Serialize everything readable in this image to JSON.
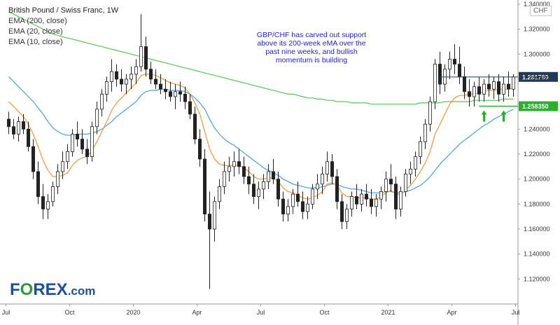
{
  "legend": {
    "title": "British Pound / Swiss Franc, 1W",
    "ema200": "EMA (200, close)",
    "ema20": "EMA (20, close)",
    "ema10": "EMA (10, close)"
  },
  "currency_badge": "CHF",
  "annotation": "GBP/CHF has carved out support above its 200-week eMA over the past nine weeks, and bullish momentum is building",
  "logo": {
    "prefix": "F",
    "o": "O",
    "suffix": "REX",
    "dotcom": ".com"
  },
  "colors": {
    "ema200": "#5cc25c",
    "ema20": "#4a9ee0",
    "ema10": "#f0963c",
    "candle_body": "#ffffff",
    "candle_stroke": "#222222",
    "badge_bg": "#1f3a5a",
    "arrow": "#2bb02b",
    "annotation_text": "#1f1fd6"
  },
  "chart_data": {
    "type": "candlestick",
    "title": "British Pound / Swiss Franc, 1W",
    "ylim": [
      1.1,
      1.34
    ],
    "y_ticks": [
      1.12,
      1.14,
      1.16,
      1.18,
      1.2,
      1.22,
      1.24,
      1.26,
      1.28,
      1.3,
      1.32,
      1.34
    ],
    "x_ticks": [
      "Jul",
      "Oct",
      "2020",
      "Apr",
      "Jul",
      "Oct",
      "2021",
      "Apr",
      "Jul"
    ],
    "price_labels": [
      {
        "value": 1.28178,
        "label": "1.281780"
      },
      {
        "value": 1.28088,
        "label": "1.280880"
      },
      {
        "value": 1.25835,
        "label": "1.258350"
      }
    ],
    "weeks": 104,
    "ohlc": [
      [
        1.248,
        1.254,
        1.236,
        1.242
      ],
      [
        1.242,
        1.248,
        1.232,
        1.236
      ],
      [
        1.236,
        1.25,
        1.23,
        1.246
      ],
      [
        1.246,
        1.252,
        1.236,
        1.24
      ],
      [
        1.24,
        1.246,
        1.222,
        1.226
      ],
      [
        1.226,
        1.232,
        1.2,
        1.206
      ],
      [
        1.206,
        1.214,
        1.18,
        1.186
      ],
      [
        1.186,
        1.196,
        1.168,
        1.176
      ],
      [
        1.176,
        1.188,
        1.168,
        1.182
      ],
      [
        1.182,
        1.198,
        1.178,
        1.194
      ],
      [
        1.194,
        1.212,
        1.188,
        1.206
      ],
      [
        1.206,
        1.222,
        1.2,
        1.214
      ],
      [
        1.214,
        1.228,
        1.208,
        1.222
      ],
      [
        1.222,
        1.24,
        1.218,
        1.236
      ],
      [
        1.236,
        1.246,
        1.226,
        1.232
      ],
      [
        1.232,
        1.24,
        1.22,
        1.224
      ],
      [
        1.224,
        1.232,
        1.212,
        1.218
      ],
      [
        1.218,
        1.246,
        1.214,
        1.242
      ],
      [
        1.242,
        1.262,
        1.236,
        1.256
      ],
      [
        1.256,
        1.272,
        1.25,
        1.268
      ],
      [
        1.268,
        1.282,
        1.262,
        1.278
      ],
      [
        1.278,
        1.296,
        1.27,
        1.286
      ],
      [
        1.286,
        1.292,
        1.274,
        1.28
      ],
      [
        1.28,
        1.288,
        1.27,
        1.276
      ],
      [
        1.276,
        1.284,
        1.268,
        1.28
      ],
      [
        1.28,
        1.29,
        1.272,
        1.284
      ],
      [
        1.284,
        1.296,
        1.276,
        1.29
      ],
      [
        1.29,
        1.332,
        1.286,
        1.306
      ],
      [
        1.306,
        1.314,
        1.282,
        1.288
      ],
      [
        1.288,
        1.294,
        1.276,
        1.28
      ],
      [
        1.28,
        1.288,
        1.272,
        1.276
      ],
      [
        1.276,
        1.284,
        1.268,
        1.272
      ],
      [
        1.272,
        1.28,
        1.264,
        1.27
      ],
      [
        1.27,
        1.278,
        1.262,
        1.266
      ],
      [
        1.266,
        1.276,
        1.256,
        1.27
      ],
      [
        1.27,
        1.278,
        1.262,
        1.268
      ],
      [
        1.268,
        1.274,
        1.256,
        1.262
      ],
      [
        1.262,
        1.268,
        1.248,
        1.252
      ],
      [
        1.252,
        1.258,
        1.228,
        1.232
      ],
      [
        1.232,
        1.24,
        1.21,
        1.216
      ],
      [
        1.216,
        1.224,
        1.166,
        1.172
      ],
      [
        1.172,
        1.19,
        1.112,
        1.16
      ],
      [
        1.16,
        1.186,
        1.15,
        1.182
      ],
      [
        1.182,
        1.2,
        1.176,
        1.194
      ],
      [
        1.194,
        1.214,
        1.188,
        1.206
      ],
      [
        1.206,
        1.218,
        1.198,
        1.21
      ],
      [
        1.21,
        1.222,
        1.202,
        1.214
      ],
      [
        1.214,
        1.224,
        1.204,
        1.21
      ],
      [
        1.21,
        1.218,
        1.196,
        1.202
      ],
      [
        1.202,
        1.21,
        1.188,
        1.196
      ],
      [
        1.196,
        1.204,
        1.18,
        1.186
      ],
      [
        1.186,
        1.198,
        1.176,
        1.192
      ],
      [
        1.192,
        1.204,
        1.184,
        1.198
      ],
      [
        1.198,
        1.212,
        1.192,
        1.206
      ],
      [
        1.206,
        1.216,
        1.196,
        1.2
      ],
      [
        1.2,
        1.206,
        1.178,
        1.184
      ],
      [
        1.184,
        1.19,
        1.166,
        1.172
      ],
      [
        1.172,
        1.184,
        1.166,
        1.178
      ],
      [
        1.178,
        1.192,
        1.172,
        1.188
      ],
      [
        1.188,
        1.198,
        1.178,
        1.182
      ],
      [
        1.182,
        1.19,
        1.168,
        1.174
      ],
      [
        1.174,
        1.186,
        1.168,
        1.18
      ],
      [
        1.18,
        1.196,
        1.176,
        1.192
      ],
      [
        1.192,
        1.204,
        1.184,
        1.196
      ],
      [
        1.196,
        1.21,
        1.188,
        1.204
      ],
      [
        1.204,
        1.222,
        1.198,
        1.214
      ],
      [
        1.214,
        1.22,
        1.196,
        1.202
      ],
      [
        1.202,
        1.208,
        1.176,
        1.182
      ],
      [
        1.182,
        1.188,
        1.16,
        1.166
      ],
      [
        1.166,
        1.18,
        1.16,
        1.176
      ],
      [
        1.176,
        1.19,
        1.17,
        1.186
      ],
      [
        1.186,
        1.196,
        1.176,
        1.18
      ],
      [
        1.18,
        1.192,
        1.174,
        1.188
      ],
      [
        1.188,
        1.196,
        1.178,
        1.184
      ],
      [
        1.184,
        1.192,
        1.172,
        1.178
      ],
      [
        1.178,
        1.188,
        1.17,
        1.184
      ],
      [
        1.184,
        1.194,
        1.176,
        1.19
      ],
      [
        1.19,
        1.206,
        1.182,
        1.2
      ],
      [
        1.2,
        1.212,
        1.19,
        1.196
      ],
      [
        1.196,
        1.202,
        1.168,
        1.176
      ],
      [
        1.176,
        1.194,
        1.17,
        1.19
      ],
      [
        1.19,
        1.208,
        1.186,
        1.204
      ],
      [
        1.204,
        1.214,
        1.196,
        1.208
      ],
      [
        1.208,
        1.222,
        1.202,
        1.218
      ],
      [
        1.218,
        1.234,
        1.212,
        1.23
      ],
      [
        1.23,
        1.248,
        1.224,
        1.244
      ],
      [
        1.244,
        1.266,
        1.238,
        1.262
      ],
      [
        1.262,
        1.296,
        1.256,
        1.292
      ],
      [
        1.292,
        1.302,
        1.268,
        1.276
      ],
      [
        1.276,
        1.292,
        1.27,
        1.288
      ],
      [
        1.288,
        1.302,
        1.28,
        1.296
      ],
      [
        1.296,
        1.308,
        1.284,
        1.292
      ],
      [
        1.292,
        1.306,
        1.276,
        1.282
      ],
      [
        1.282,
        1.29,
        1.264,
        1.27
      ],
      [
        1.27,
        1.28,
        1.258,
        1.266
      ],
      [
        1.266,
        1.278,
        1.258,
        1.274
      ],
      [
        1.274,
        1.282,
        1.262,
        1.268
      ],
      [
        1.268,
        1.28,
        1.262,
        1.276
      ],
      [
        1.276,
        1.284,
        1.266,
        1.272
      ],
      [
        1.272,
        1.282,
        1.264,
        1.278
      ],
      [
        1.278,
        1.284,
        1.262,
        1.268
      ],
      [
        1.268,
        1.282,
        1.262,
        1.276
      ],
      [
        1.276,
        1.286,
        1.266,
        1.272
      ],
      [
        1.272,
        1.284,
        1.266,
        1.2818
      ]
    ],
    "series": [
      {
        "name": "EMA (200, close)",
        "color": "#5cc25c",
        "values": [
          1.334,
          1.332,
          1.33,
          1.328,
          1.326,
          1.324,
          1.322,
          1.32,
          1.318,
          1.316,
          1.315,
          1.314,
          1.313,
          1.312,
          1.311,
          1.31,
          1.309,
          1.308,
          1.307,
          1.306,
          1.305,
          1.304,
          1.303,
          1.302,
          1.301,
          1.3,
          1.299,
          1.298,
          1.297,
          1.296,
          1.295,
          1.294,
          1.293,
          1.292,
          1.291,
          1.29,
          1.289,
          1.288,
          1.287,
          1.286,
          1.285,
          1.284,
          1.283,
          1.282,
          1.281,
          1.28,
          1.279,
          1.278,
          1.277,
          1.276,
          1.275,
          1.274,
          1.273,
          1.272,
          1.271,
          1.27,
          1.269,
          1.268,
          1.268,
          1.267,
          1.266,
          1.265,
          1.265,
          1.264,
          1.264,
          1.263,
          1.263,
          1.262,
          1.262,
          1.262,
          1.261,
          1.261,
          1.261,
          1.261,
          1.26,
          1.26,
          1.26,
          1.26,
          1.26,
          1.26,
          1.26,
          1.26,
          1.26,
          1.26,
          1.261,
          1.261,
          1.261,
          1.261,
          1.261,
          1.262,
          1.262,
          1.262,
          1.262,
          1.262,
          1.262,
          1.263,
          1.263,
          1.263,
          1.263,
          1.263,
          1.263,
          1.264,
          1.264,
          1.264
        ]
      },
      {
        "name": "EMA (20, close)",
        "color": "#4a9ee0",
        "values": [
          1.282,
          1.278,
          1.274,
          1.27,
          1.266,
          1.262,
          1.257,
          1.252,
          1.246,
          1.241,
          1.238,
          1.236,
          1.235,
          1.235,
          1.236,
          1.236,
          1.236,
          1.237,
          1.238,
          1.24,
          1.243,
          1.246,
          1.25,
          1.253,
          1.256,
          1.259,
          1.262,
          1.267,
          1.27,
          1.271,
          1.271,
          1.272,
          1.272,
          1.271,
          1.271,
          1.271,
          1.27,
          1.268,
          1.265,
          1.261,
          1.256,
          1.248,
          1.241,
          1.236,
          1.232,
          1.229,
          1.227,
          1.224,
          1.221,
          1.218,
          1.215,
          1.212,
          1.209,
          1.207,
          1.205,
          1.203,
          1.2,
          1.198,
          1.196,
          1.195,
          1.194,
          1.193,
          1.193,
          1.193,
          1.194,
          1.195,
          1.196,
          1.196,
          1.194,
          1.193,
          1.192,
          1.192,
          1.191,
          1.19,
          1.189,
          1.189,
          1.189,
          1.19,
          1.19,
          1.189,
          1.189,
          1.19,
          1.191,
          1.193,
          1.195,
          1.198,
          1.202,
          1.207,
          1.212,
          1.216,
          1.22,
          1.224,
          1.228,
          1.231,
          1.234,
          1.237,
          1.24,
          1.243,
          1.245,
          1.248,
          1.25,
          1.252,
          1.254,
          1.256
        ]
      },
      {
        "name": "EMA (10, close)",
        "color": "#f0963c",
        "values": [
          1.262,
          1.258,
          1.254,
          1.25,
          1.244,
          1.236,
          1.226,
          1.215,
          1.207,
          1.202,
          1.202,
          1.203,
          1.205,
          1.211,
          1.215,
          1.217,
          1.218,
          1.223,
          1.23,
          1.238,
          1.246,
          1.255,
          1.261,
          1.265,
          1.269,
          1.273,
          1.277,
          1.283,
          1.284,
          1.284,
          1.283,
          1.281,
          1.279,
          1.277,
          1.276,
          1.275,
          1.273,
          1.268,
          1.261,
          1.252,
          1.238,
          1.224,
          1.216,
          1.212,
          1.211,
          1.211,
          1.211,
          1.211,
          1.209,
          1.206,
          1.202,
          1.2,
          1.2,
          1.201,
          1.201,
          1.198,
          1.193,
          1.19,
          1.189,
          1.187,
          1.185,
          1.184,
          1.185,
          1.187,
          1.19,
          1.196,
          1.197,
          1.195,
          1.189,
          1.186,
          1.186,
          1.185,
          1.185,
          1.185,
          1.184,
          1.184,
          1.186,
          1.189,
          1.191,
          1.188,
          1.188,
          1.191,
          1.195,
          1.2,
          1.206,
          1.213,
          1.222,
          1.236,
          1.244,
          1.252,
          1.26,
          1.265,
          1.267,
          1.267,
          1.268,
          1.268,
          1.269,
          1.27,
          1.271,
          1.271,
          1.272,
          1.272,
          1.272,
          1.273
        ]
      }
    ],
    "support_arrows_at_week": [
      97,
      101
    ]
  }
}
